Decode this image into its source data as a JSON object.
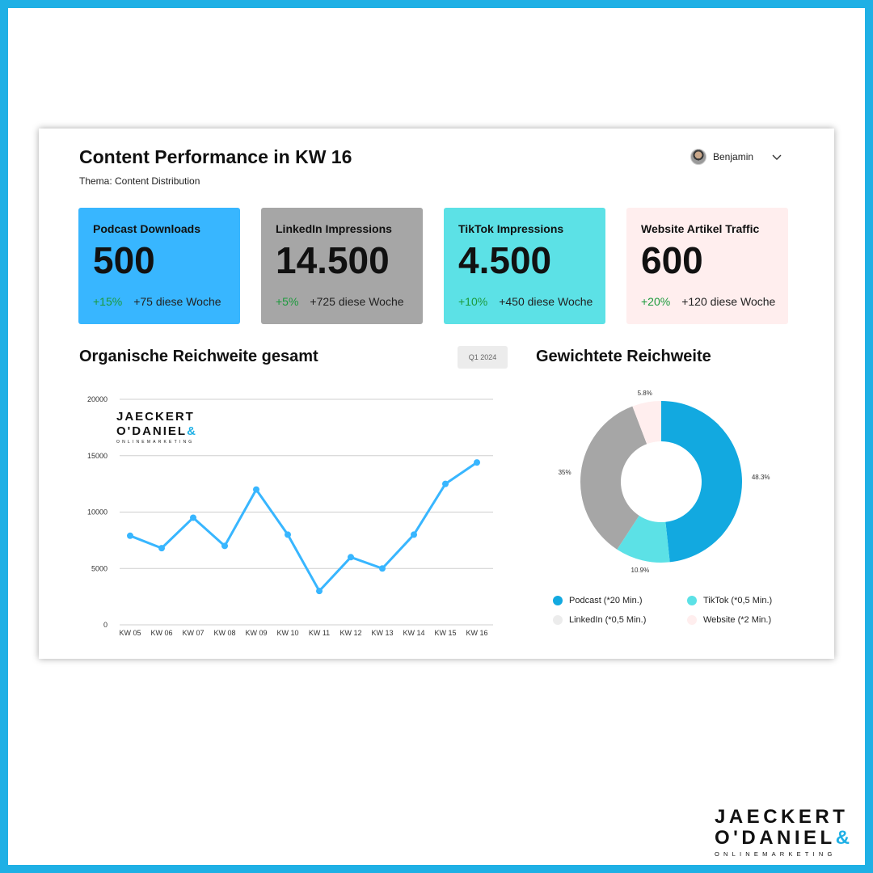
{
  "header": {
    "title": "Content Performance in KW 16",
    "subtitle": "Thema: Content Distribution",
    "user_name": "Benjamin"
  },
  "kpis": [
    {
      "label": "Podcast Downloads",
      "value": "500",
      "pct": "+15%",
      "delta": "+75 diese Woche",
      "color": "#38b6ff"
    },
    {
      "label": "LinkedIn Impressions",
      "value": "14.500",
      "pct": "+5%",
      "delta": "+725 diese Woche",
      "color": "#a6a6a6"
    },
    {
      "label": "TikTok Impressions",
      "value": "4.500",
      "pct": "+10%",
      "delta": "+450 diese Woche",
      "color": "#5ce1e6"
    },
    {
      "label": "Website Artikel Traffic",
      "value": "600",
      "pct": "+20%",
      "delta": "+120 diese Woche",
      "color": "#ffeeee"
    }
  ],
  "line_section": {
    "title": "Organische Reichweite gesamt",
    "period": "Q1 2024"
  },
  "donut_section": {
    "title": "Gewichtete Reichweite"
  },
  "watermark": {
    "line1": "JAECKERT",
    "line2": "O'DANIEL",
    "amp": "&",
    "line3": "ONLINEMARKETING"
  },
  "chart_data": [
    {
      "type": "line",
      "categories": [
        "KW 05",
        "KW 06",
        "KW 07",
        "KW 08",
        "KW 09",
        "KW 10",
        "KW 11",
        "KW 12",
        "KW 13",
        "KW 14",
        "KW 15",
        "KW 16"
      ],
      "values": [
        7900,
        6800,
        9500,
        7000,
        12000,
        8000,
        3000,
        6000,
        5000,
        8000,
        12500,
        14400
      ],
      "yticks": [
        "0",
        "5000",
        "10000",
        "15000",
        "20000"
      ],
      "ylim": [
        0,
        20000
      ],
      "grid": true,
      "color": "#38b6ff"
    },
    {
      "type": "pie",
      "donut": true,
      "labels": [
        "Podcast (*20 Min.)",
        "TikTok (*0,5 Min.)",
        "LinkedIn (*0,5 Min.)",
        "Website (*2 Min.)"
      ],
      "values": [
        48.3,
        10.9,
        35,
        5.8
      ],
      "value_labels": [
        "48.3%",
        "10.9%",
        "35%",
        "5.8%"
      ],
      "colors": [
        "#12a9e0",
        "#5ce1e6",
        "#a6a6a6",
        "#ffeeee"
      ],
      "legend_dot_colors": [
        "#12a9e0",
        "#5ce1e6",
        "#ececec",
        "#ffeeee"
      ],
      "legend": "bottom"
    }
  ]
}
